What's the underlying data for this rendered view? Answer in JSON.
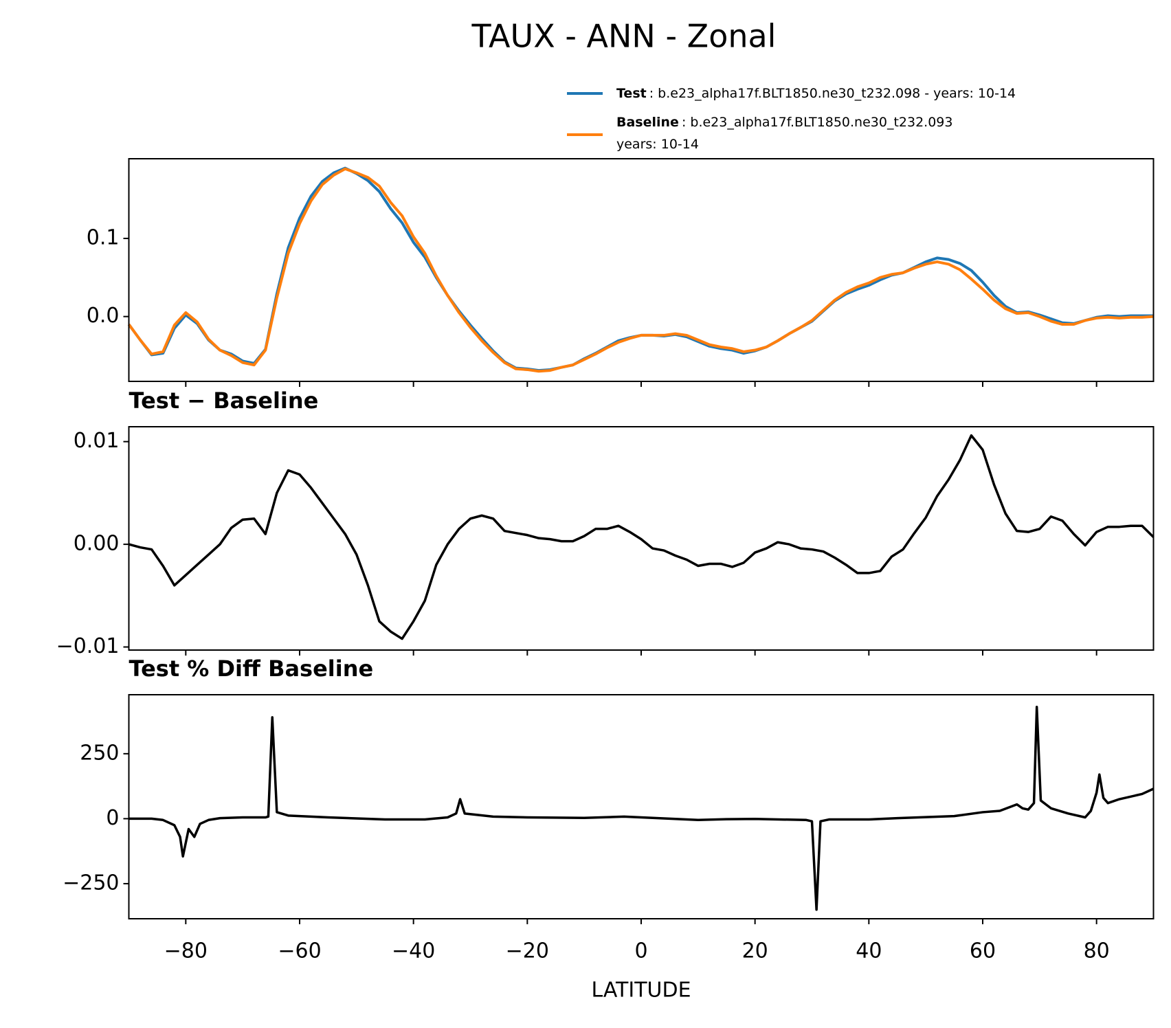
{
  "title": "TAUX - ANN - Zonal",
  "chart_data": [
    {
      "type": "line",
      "x": [
        -90,
        -88,
        -86,
        -84,
        -82,
        -80,
        -78,
        -76,
        -74,
        -72,
        -70,
        -68,
        -66,
        -64,
        -62,
        -60,
        -58,
        -56,
        -54,
        -52,
        -50,
        -48,
        -46,
        -44,
        -42,
        -40,
        -38,
        -36,
        -34,
        -32,
        -30,
        -28,
        -26,
        -24,
        -22,
        -20,
        -18,
        -16,
        -14,
        -12,
        -10,
        -8,
        -6,
        -4,
        -2,
        0,
        2,
        4,
        6,
        8,
        10,
        12,
        14,
        16,
        18,
        20,
        22,
        24,
        26,
        28,
        30,
        32,
        34,
        36,
        38,
        40,
        42,
        44,
        46,
        48,
        50,
        52,
        54,
        56,
        58,
        60,
        62,
        64,
        66,
        68,
        70,
        72,
        74,
        76,
        78,
        80,
        82,
        84,
        86,
        88,
        90
      ],
      "series": [
        {
          "name": "Test",
          "legend_text": [
            ": b.e23_alpha17f.BLT1850.ne30_t232.098 - years: 10-14"
          ],
          "color": "#1f77b4",
          "values": [
            -0.01,
            -0.03,
            -0.049,
            -0.047,
            -0.015,
            0.002,
            -0.009,
            -0.03,
            -0.043,
            -0.048,
            -0.057,
            -0.06,
            -0.042,
            0.029,
            0.088,
            0.126,
            0.154,
            0.173,
            0.184,
            0.19,
            0.183,
            0.174,
            0.16,
            0.138,
            0.12,
            0.095,
            0.076,
            0.05,
            0.027,
            0.007,
            -0.011,
            -0.028,
            -0.044,
            -0.058,
            -0.066,
            -0.067,
            -0.069,
            -0.068,
            -0.065,
            -0.062,
            -0.054,
            -0.047,
            -0.039,
            -0.031,
            -0.027,
            -0.024,
            -0.024,
            -0.025,
            -0.023,
            -0.026,
            -0.032,
            -0.038,
            -0.041,
            -0.043,
            -0.047,
            -0.044,
            -0.039,
            -0.031,
            -0.022,
            -0.014,
            -0.006,
            0.007,
            0.02,
            0.029,
            0.035,
            0.04,
            0.047,
            0.053,
            0.056,
            0.063,
            0.07,
            0.075,
            0.073,
            0.068,
            0.059,
            0.044,
            0.027,
            0.013,
            0.005,
            0.006,
            0.002,
            -0.003,
            -0.008,
            -0.009,
            -0.005,
            -0.001,
            0.001,
            0.0,
            0.001,
            0.001,
            0.001
          ]
        },
        {
          "name": "Baseline",
          "legend_text": [
            ": b.e23_alpha17f.BLT1850.ne30_t232.093",
            "years: 10-14"
          ],
          "color": "#ff7f0e",
          "values": [
            -0.01,
            -0.03,
            -0.048,
            -0.045,
            -0.011,
            0.005,
            -0.007,
            -0.029,
            -0.043,
            -0.05,
            -0.059,
            -0.062,
            -0.043,
            0.024,
            0.081,
            0.119,
            0.148,
            0.169,
            0.181,
            0.189,
            0.184,
            0.178,
            0.167,
            0.146,
            0.129,
            0.102,
            0.081,
            0.052,
            0.027,
            0.005,
            -0.014,
            -0.031,
            -0.046,
            -0.059,
            -0.067,
            -0.068,
            -0.07,
            -0.069,
            -0.065,
            -0.062,
            -0.055,
            -0.048,
            -0.04,
            -0.033,
            -0.028,
            -0.024,
            -0.024,
            -0.024,
            -0.022,
            -0.024,
            -0.03,
            -0.036,
            -0.039,
            -0.041,
            -0.045,
            -0.043,
            -0.039,
            -0.031,
            -0.022,
            -0.014,
            -0.005,
            0.008,
            0.021,
            0.031,
            0.038,
            0.043,
            0.05,
            0.054,
            0.056,
            0.062,
            0.067,
            0.07,
            0.067,
            0.06,
            0.048,
            0.035,
            0.021,
            0.01,
            0.004,
            0.005,
            0.0,
            -0.006,
            -0.01,
            -0.01,
            -0.005,
            -0.002,
            -0.001,
            -0.002,
            -0.001,
            -0.001,
            0.0
          ]
        }
      ],
      "xlim": [
        -90,
        90
      ],
      "xticks": [
        -80,
        -60,
        -40,
        -20,
        0,
        20,
        40,
        60,
        80
      ],
      "ylim": [
        -0.083,
        0.202
      ],
      "yticks": [
        {
          "value": 0,
          "label": "0.0"
        },
        0.1
      ]
    },
    {
      "type": "line",
      "title": "Test − Baseline",
      "color": "#000000",
      "x": [
        -90,
        -88,
        -86,
        -84,
        -82,
        -80,
        -78,
        -76,
        -74,
        -72,
        -70,
        -68,
        -66,
        -64,
        -62,
        -60,
        -58,
        -56,
        -54,
        -52,
        -50,
        -48,
        -46,
        -44,
        -42,
        -40,
        -38,
        -36,
        -34,
        -32,
        -30,
        -28,
        -26,
        -24,
        -22,
        -20,
        -18,
        -16,
        -14,
        -12,
        -10,
        -8,
        -6,
        -4,
        -2,
        0,
        2,
        4,
        6,
        8,
        10,
        12,
        14,
        16,
        18,
        20,
        22,
        24,
        26,
        28,
        30,
        32,
        34,
        36,
        38,
        40,
        42,
        44,
        46,
        48,
        50,
        52,
        54,
        56,
        58,
        60,
        62,
        64,
        66,
        68,
        70,
        72,
        74,
        76,
        78,
        80,
        82,
        84,
        86,
        88,
        90
      ],
      "values": [
        0,
        -0.0003,
        -0.0005,
        -0.0021,
        -0.004,
        -0.003,
        -0.002,
        -0.001,
        0,
        0.0016,
        0.0024,
        0.0025,
        0.001,
        0.005,
        0.0072,
        0.0068,
        0.0055,
        0.004,
        0.0025,
        0.001,
        -0.001,
        -0.004,
        -0.0075,
        -0.0085,
        -0.0092,
        -0.0075,
        -0.0055,
        -0.002,
        0,
        0.0015,
        0.0025,
        0.0028,
        0.0025,
        0.0013,
        0.0011,
        0.0009,
        0.0006,
        0.0005,
        0.0003,
        0.0003,
        0.0008,
        0.0015,
        0.0015,
        0.0018,
        0.0012,
        0.0005,
        -0.0004,
        -0.0006,
        -0.0011,
        -0.0015,
        -0.0021,
        -0.0019,
        -0.0019,
        -0.0022,
        -0.0018,
        -0.0008,
        -0.0004,
        0.0002,
        0,
        -0.0004,
        -0.0005,
        -0.0007,
        -0.0013,
        -0.002,
        -0.0028,
        -0.0028,
        -0.0026,
        -0.0012,
        -0.0005,
        0.0011,
        0.0026,
        0.0047,
        0.0063,
        0.0082,
        0.0106,
        0.0092,
        0.0058,
        0.003,
        0.0013,
        0.0012,
        0.0015,
        0.0027,
        0.0023,
        0.001,
        -0.0001,
        0.0012,
        0.0017,
        0.0017,
        0.0018,
        0.0018,
        0.0007
      ],
      "xlim": [
        -90,
        90
      ],
      "xticks": [
        -80,
        -60,
        -40,
        -20,
        0,
        20,
        40,
        60,
        80
      ],
      "ylim": [
        -0.0103,
        0.01145
      ],
      "yticks": [
        {
          "value": -0.01,
          "label": "−0.01"
        },
        {
          "value": 0,
          "label": "0.00"
        },
        0.01
      ]
    },
    {
      "type": "line",
      "title": "Test % Diff Baseline",
      "color": "#000000",
      "xlabel": "LATITUDE",
      "x": [
        -90,
        -86,
        -84,
        -82,
        -81,
        -80.5,
        -79.5,
        -78.5,
        -77.5,
        -76,
        -74,
        -70,
        -66,
        -65.5,
        -64.8,
        -64,
        -62,
        -55,
        -45,
        -38,
        -34,
        -32.5,
        -31.8,
        -31,
        -26,
        -20,
        -10,
        -3,
        5,
        10,
        15,
        20,
        29,
        30,
        30.8,
        31.5,
        33,
        40,
        45,
        55,
        60,
        63,
        66,
        67,
        68,
        69,
        69.5,
        70.2,
        72,
        75,
        78,
        79,
        80,
        80.5,
        81.2,
        82,
        84,
        88,
        90
      ],
      "values": [
        0,
        0,
        -5,
        -25,
        -70,
        -145,
        -40,
        -70,
        -20,
        -5,
        2,
        5,
        5,
        8,
        390,
        25,
        12,
        5,
        -3,
        -3,
        5,
        20,
        75,
        20,
        8,
        5,
        3,
        8,
        0,
        -5,
        -2,
        -1,
        -5,
        -10,
        -350,
        -10,
        -3,
        -3,
        2,
        10,
        25,
        30,
        55,
        40,
        35,
        60,
        430,
        70,
        40,
        20,
        5,
        30,
        100,
        170,
        80,
        60,
        75,
        95,
        115
      ],
      "xlim": [
        -90,
        90
      ],
      "xticks": [
        {
          "value": -80,
          "label": "−80"
        },
        {
          "value": -60,
          "label": "−60"
        },
        {
          "value": -40,
          "label": "−40"
        },
        {
          "value": -20,
          "label": "−20"
        },
        0,
        20,
        40,
        60,
        80
      ],
      "ylim": [
        -385,
        477
      ],
      "yticks": [
        {
          "value": -250,
          "label": "−250"
        },
        0,
        250
      ]
    }
  ]
}
